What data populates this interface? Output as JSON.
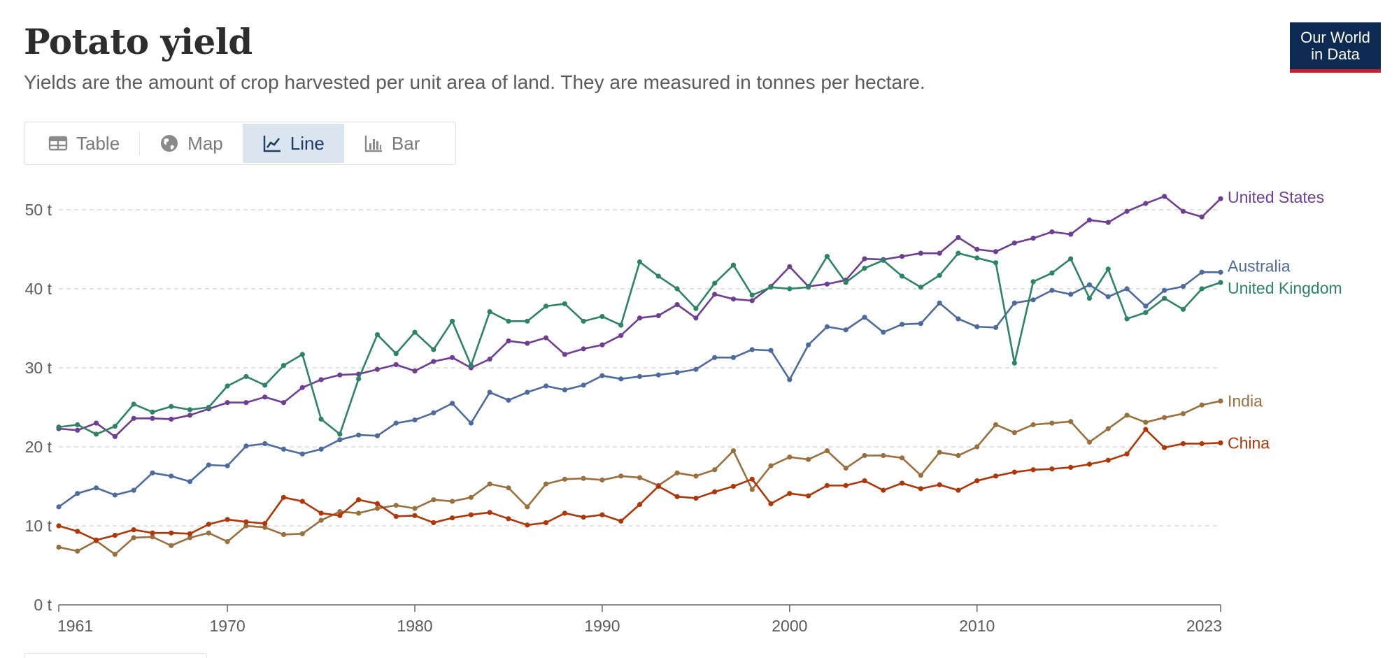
{
  "header": {
    "title": "Potato yield",
    "subtitle": "Yields are the amount of crop harvested per unit area of land. They are measured in tonnes per hectare.",
    "logo_line1": "Our World",
    "logo_line2": "in Data"
  },
  "tabs": [
    {
      "label": "Table",
      "icon": "table-icon",
      "active": false
    },
    {
      "label": "Map",
      "icon": "globe-icon",
      "active": false
    },
    {
      "label": "Line",
      "icon": "line-chart-icon",
      "active": true
    },
    {
      "label": "Bar",
      "icon": "bar-chart-icon",
      "active": false
    }
  ],
  "colors": {
    "grid": "#d9d9d9",
    "axis": "#666666",
    "tick_text": "#5b5b5b",
    "active_tab_bg": "#dbe5f0",
    "logo_bg": "#0d2a52",
    "logo_accent": "#c8202f"
  },
  "chart_data": {
    "type": "line",
    "title": "Potato yield",
    "ylim": [
      0,
      50
    ],
    "xlim": [
      1961,
      2023
    ],
    "y_ticks": [
      {
        "value": 0,
        "label": "0 t"
      },
      {
        "value": 10,
        "label": "10 t"
      },
      {
        "value": 20,
        "label": "20 t"
      },
      {
        "value": 30,
        "label": "30 t"
      },
      {
        "value": 40,
        "label": "40 t"
      },
      {
        "value": 50,
        "label": "50 t"
      }
    ],
    "x_ticks": [
      {
        "value": 1961,
        "label": "1961"
      },
      {
        "value": 1970,
        "label": "1970"
      },
      {
        "value": 1980,
        "label": "1980"
      },
      {
        "value": 1990,
        "label": "1990"
      },
      {
        "value": 2000,
        "label": "2000"
      },
      {
        "value": 2010,
        "label": "2010"
      },
      {
        "value": 2023,
        "label": "2023"
      }
    ],
    "grid": "horizontal dashed",
    "legend": "inline labels at line ends (right)",
    "x": [
      1961,
      1962,
      1963,
      1964,
      1965,
      1966,
      1967,
      1968,
      1969,
      1970,
      1971,
      1972,
      1973,
      1974,
      1975,
      1976,
      1977,
      1978,
      1979,
      1980,
      1981,
      1982,
      1983,
      1984,
      1985,
      1986,
      1987,
      1988,
      1989,
      1990,
      1991,
      1992,
      1993,
      1994,
      1995,
      1996,
      1997,
      1998,
      1999,
      2000,
      2001,
      2002,
      2003,
      2004,
      2005,
      2006,
      2007,
      2008,
      2009,
      2010,
      2011,
      2012,
      2013,
      2014,
      2015,
      2016,
      2017,
      2018,
      2019,
      2020,
      2021,
      2022,
      2023
    ],
    "series": [
      {
        "name": "United States",
        "color": "#6d3e91",
        "values": [
          22.3,
          22.1,
          23.0,
          21.3,
          23.6,
          23.6,
          23.5,
          24.0,
          24.8,
          25.6,
          25.6,
          26.3,
          25.6,
          27.5,
          28.5,
          29.1,
          29.2,
          29.8,
          30.4,
          29.6,
          30.8,
          31.3,
          30.0,
          31.1,
          33.4,
          33.1,
          33.8,
          31.7,
          32.4,
          32.9,
          34.1,
          36.3,
          36.6,
          38.0,
          36.3,
          39.3,
          38.7,
          38.5,
          40.3,
          42.8,
          40.3,
          40.6,
          41.1,
          43.8,
          43.7,
          44.1,
          44.5,
          44.5,
          46.5,
          45.0,
          44.7,
          45.8,
          46.4,
          47.2,
          46.9,
          48.7,
          48.4,
          49.8,
          50.8,
          51.7,
          49.8,
          49.1,
          51.4
        ]
      },
      {
        "name": "Australia",
        "color": "#4c6a9c",
        "values": [
          12.4,
          14.1,
          14.8,
          13.9,
          14.5,
          16.7,
          16.3,
          15.6,
          17.7,
          17.6,
          20.1,
          20.4,
          19.7,
          19.1,
          19.7,
          20.9,
          21.5,
          21.4,
          23.0,
          23.4,
          24.3,
          25.5,
          23.0,
          26.9,
          25.9,
          26.9,
          27.7,
          27.2,
          27.8,
          29.0,
          28.6,
          28.9,
          29.1,
          29.4,
          29.8,
          31.3,
          31.3,
          32.3,
          32.2,
          28.5,
          32.9,
          35.2,
          34.8,
          36.4,
          34.5,
          35.5,
          35.6,
          38.2,
          36.2,
          35.2,
          35.1,
          38.2,
          38.6,
          39.8,
          39.3,
          40.5,
          39.0,
          40.0,
          37.8,
          39.8,
          40.3,
          42.1,
          42.1
        ]
      },
      {
        "name": "United Kingdom",
        "color": "#2c8465",
        "values": [
          22.5,
          22.8,
          21.6,
          22.6,
          25.4,
          24.4,
          25.1,
          24.7,
          25.0,
          27.7,
          28.9,
          27.8,
          30.3,
          31.7,
          23.5,
          21.6,
          28.6,
          34.2,
          31.8,
          34.5,
          32.3,
          35.9,
          30.3,
          37.1,
          35.9,
          35.9,
          37.8,
          38.1,
          35.9,
          36.5,
          35.4,
          43.4,
          41.6,
          40.0,
          37.5,
          40.7,
          43.0,
          39.2,
          40.2,
          40.0,
          40.2,
          44.1,
          40.8,
          42.6,
          43.6,
          41.6,
          40.2,
          41.7,
          44.5,
          43.9,
          43.3,
          30.6,
          40.9,
          42.0,
          43.8,
          38.8,
          42.5,
          36.2,
          37.0,
          38.8,
          37.4,
          40.0,
          40.8
        ]
      },
      {
        "name": "India",
        "color": "#9a6f3e",
        "values": [
          7.3,
          6.8,
          8.1,
          6.4,
          8.5,
          8.6,
          7.5,
          8.5,
          9.1,
          8.0,
          10.0,
          9.8,
          8.9,
          9.0,
          10.7,
          11.8,
          11.6,
          12.2,
          12.6,
          12.2,
          13.3,
          13.1,
          13.6,
          15.3,
          14.8,
          12.4,
          15.3,
          15.9,
          16.0,
          15.8,
          16.3,
          16.1,
          15.1,
          16.7,
          16.3,
          17.1,
          19.5,
          14.6,
          17.6,
          18.7,
          18.4,
          19.5,
          17.3,
          18.9,
          18.9,
          18.6,
          16.4,
          19.3,
          18.9,
          20.0,
          22.8,
          21.8,
          22.8,
          23.0,
          23.2,
          20.6,
          22.3,
          24.0,
          23.1,
          23.7,
          24.2,
          25.3,
          25.8
        ]
      },
      {
        "name": "China",
        "color": "#b13507",
        "values": [
          10.0,
          9.3,
          8.2,
          8.8,
          9.5,
          9.1,
          9.1,
          9.0,
          10.2,
          10.8,
          10.5,
          10.3,
          13.6,
          13.1,
          11.6,
          11.3,
          13.3,
          12.8,
          11.2,
          11.3,
          10.4,
          11.0,
          11.4,
          11.7,
          10.9,
          10.1,
          10.4,
          11.6,
          11.1,
          11.4,
          10.6,
          12.7,
          15.0,
          13.7,
          13.5,
          14.3,
          15.0,
          15.9,
          12.8,
          14.1,
          13.8,
          15.1,
          15.1,
          15.7,
          14.5,
          15.4,
          14.7,
          15.2,
          14.5,
          15.7,
          16.3,
          16.8,
          17.1,
          17.2,
          17.4,
          17.8,
          18.3,
          19.1,
          22.2,
          19.9,
          20.4,
          20.4,
          20.5
        ]
      }
    ]
  }
}
